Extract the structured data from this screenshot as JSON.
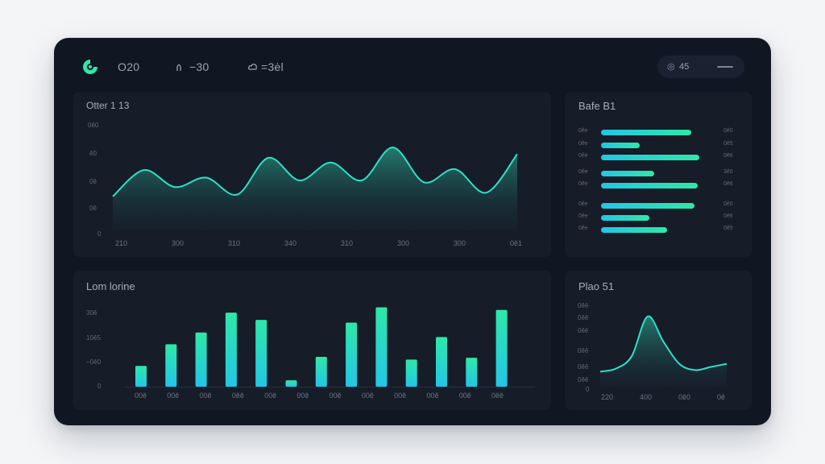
{
  "header": {
    "nav": [
      {
        "icon": "circle-logo-icon",
        "label": "O20"
      },
      {
        "icon": "chart-peak-icon",
        "label": "−30"
      },
      {
        "icon": "cloud-icon",
        "label": "=3ėl"
      }
    ],
    "pill": {
      "icon": "eye-icon",
      "label": "45"
    }
  },
  "colors": {
    "accent_cyan": "#22c6e6",
    "accent_green": "#2ee8a9",
    "panel_bg": "#161d29",
    "window_bg": "#111722"
  },
  "area_panel": {
    "title": "Otter 1 13",
    "y_ticks": [
      "0ĕ0",
      "ĕ0",
      "0ĕ",
      "0ĕ",
      "0"
    ],
    "x_ticks": [
      "210",
      "300",
      "310",
      "340",
      "310",
      "300",
      "300",
      "0ĕ1"
    ]
  },
  "hbar_panel": {
    "title": "Bafe B1",
    "rows": [
      {
        "label": "0ĕe",
        "value": 0.56,
        "text": "0ĕ0"
      },
      {
        "label": "0ĕe",
        "value": 0.24,
        "text": "0ĕ5"
      },
      {
        "label": "0ĕe",
        "value": 0.61,
        "text": "0ĕ6"
      },
      {
        "label": "0ĕe",
        "value": 0.33,
        "text": "3ĕ0"
      },
      {
        "label": "0ĕe",
        "value": 0.6,
        "text": "0ĕ6"
      },
      {
        "label": "0ĕe",
        "value": 0.58,
        "text": "0ĕ0"
      },
      {
        "label": "0ĕe",
        "value": 0.3,
        "text": "0ĕ6"
      },
      {
        "label": "0ĕe",
        "value": 0.41,
        "text": "0ĕ5"
      }
    ]
  },
  "bar_panel": {
    "title": "Lom lorine",
    "y_ticks": [
      "30ĕ",
      "10ĕ5",
      "−0ĕ0",
      "0"
    ],
    "x_ticks": [
      "00ĕ",
      "00ĕ",
      "00ĕ",
      "0ĕĕ",
      "00ĕ",
      "00ĕ",
      "00ĕ",
      "00ĕ",
      "00ĕ",
      "00ĕ",
      "00ĕ",
      "0ĕĕ"
    ]
  },
  "bell_panel": {
    "title": "Plao 51",
    "y_ticks": [
      "0ĕĕ",
      "0ĕĕ",
      "0ĕĕ",
      "0ĕĕ",
      "0ĕĕ",
      "0ĕĕ",
      "0"
    ],
    "x_ticks": [
      "220",
      "400",
      "0ĕ0",
      "0ĕ"
    ]
  },
  "chart_data": [
    {
      "type": "area",
      "series": [
        {
          "values": [
            36,
            64,
            46,
            56,
            38,
            77,
            53,
            72,
            53,
            88,
            51,
            65,
            40,
            81
          ]
        }
      ],
      "ylim": [
        0,
        100
      ]
    },
    {
      "type": "bar",
      "values": [
        23,
        47,
        60,
        82,
        74,
        7,
        33,
        71,
        88,
        30,
        55,
        32,
        85
      ],
      "ylim": [
        0,
        100
      ]
    },
    {
      "type": "area",
      "series": [
        {
          "values": [
            20,
            24,
            40,
            90,
            58,
            30,
            22,
            26,
            30
          ]
        }
      ],
      "ylim": [
        0,
        100
      ]
    }
  ]
}
